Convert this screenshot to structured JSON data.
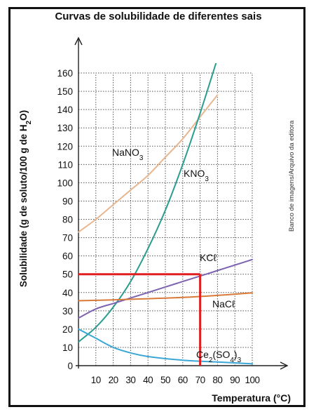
{
  "chart_data": {
    "type": "line",
    "title": "Curvas de solubilidade de diferentes sais",
    "ylabel_parts": [
      "Solubilidade (g de soluto/100 g de H",
      "2",
      "O)"
    ],
    "xlabel": "Temperatura (°C)",
    "credit": "Banco de imagens/Arquivo da editora",
    "xlim": [
      0,
      100
    ],
    "ylim": [
      0,
      160
    ],
    "xticks": [
      10,
      20,
      30,
      40,
      50,
      60,
      70,
      80,
      90,
      100
    ],
    "yticks": [
      0,
      10,
      20,
      30,
      40,
      50,
      60,
      70,
      80,
      90,
      100,
      110,
      120,
      130,
      140,
      150,
      160
    ],
    "grid": true,
    "series": [
      {
        "name": "NaNO3",
        "label_parts": [
          "NaNO",
          "3",
          ""
        ],
        "color": "#e8b78f",
        "x": [
          0,
          10,
          20,
          30,
          40,
          50,
          60,
          70,
          80
        ],
        "y": [
          73,
          80,
          88,
          96,
          104,
          114,
          124,
          136,
          148
        ]
      },
      {
        "name": "KNO3",
        "label_parts": [
          "KNO",
          "3",
          ""
        ],
        "color": "#2a9d8f",
        "x": [
          0,
          10,
          20,
          30,
          40,
          50,
          60,
          70,
          80
        ],
        "y": [
          13,
          21,
          32,
          46,
          64,
          85,
          110,
          138,
          168
        ]
      },
      {
        "name": "KCℓ",
        "label_parts": [
          "KCℓ",
          "",
          ""
        ],
        "color": "#7b63b0",
        "x": [
          0,
          10,
          20,
          30,
          40,
          50,
          60,
          70,
          80,
          90,
          100
        ],
        "y": [
          26,
          31,
          34,
          37,
          40,
          43,
          46,
          49,
          52,
          55,
          58
        ]
      },
      {
        "name": "NaCℓ",
        "label_parts": [
          "NaCℓ",
          "",
          ""
        ],
        "color": "#d97a3a",
        "x": [
          0,
          20,
          40,
          60,
          80,
          100
        ],
        "y": [
          35.5,
          36,
          36.6,
          37.3,
          38.4,
          39.8
        ]
      },
      {
        "name": "Ce2(SO4)3",
        "label_parts": [
          "Ce",
          "2",
          "(SO",
          "4",
          ")",
          "3"
        ],
        "color": "#3aa7d6",
        "x": [
          0,
          10,
          20,
          30,
          40,
          60,
          80,
          100
        ],
        "y": [
          20,
          15,
          10,
          7,
          5,
          3,
          2,
          1
        ]
      }
    ],
    "annotations": {
      "highlight_lines": {
        "color": "#e02020",
        "x_value": 70,
        "y_value": 50
      }
    }
  }
}
